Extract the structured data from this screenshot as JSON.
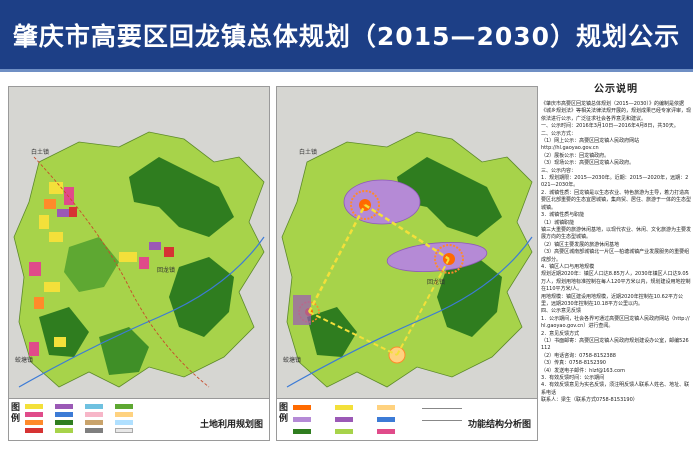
{
  "header": {
    "title": "肇庆市高要区回龙镇总体规划（2015—2030）规划公示"
  },
  "map_left": {
    "caption": "土地利用规划图",
    "legend_heading": "图例",
    "town_labels": [
      "白土镇",
      "回龙镇",
      "蛟塘镇"
    ]
  },
  "map_right": {
    "caption": "功能结构分析图",
    "legend_heading": "图例",
    "town_labels": [
      "白土镇",
      "回龙镇",
      "蛟塘镇"
    ]
  },
  "notice": {
    "title": "公示说明",
    "body": "《肇庆市高要区回龙镇总体规划（2015—2030）》的编制是依据《城乡规划法》等相关法律法规开展的，规划成果已经专家评审，现依法进行公示，广泛征求社会各界意见和建议。\n一、公示时间：2016年3月10日—2016年4月8日，共30天。\n二、公示方式：\n（1）网上公示：高要区回龙镇人民政府网站\nhttp://hl.gaoyao.gov.cn\n（2）展板公示：回龙镇政府。\n（3）现场公示：高要区回龙镇人民政府。\n三、公示内容：\n1．规划期限：2015—2030年。近期：2015—2020年，远期：2021—2030年。\n2．城镇性质：回龙镇是以生态农业、特色旅游为主导，着力打造高要区北部重要的生态宜居城镇，集商贸、居住、旅游于一体的生态型城镇。\n3．城镇性质与职能\n（1）城镇职能\n镇三大重要的旅游休闲基地，以现代农业、休闲、文化旅游为主要发展方向的生态型城镇。\n（2）镇区主要发展的旅游休闲基地\n（3）高要区城南部城镇北一片区—柏塘城镇产业发展服务的重要组成部分。\n4．镇区人口与用地规模\n规划近期2020年：镇区人口达8.85万人，2030年镇区人口达9.05万人，规划用地标准控制在每人120平方米以内，规划建设用地控制在110平方米/人。\n用地规模：镇区建设用地规模，近期2020年控制在10.62平方公里，远期2030年控制在10.18平方公里以内。\n四、公示意见反馈\n1．公示期间，社会各界可通过高要区回龙镇人民政府网站（http://hl.gaoyao.gov.cn）进行查阅。\n2．意见反馈方式\n（1）书面邮寄：高要区回龙镇人民政府规划建设办公室，邮编526112\n（2）电话咨询：0758-8152388\n（3）传真：0758-8152390\n（4）发送电子邮件：hlzf@163.com\n3．有效反馈时间：公示期间\n4．有效反馈意见为实名反馈，须注明反馈人联系人姓名、地址、联系电话\n联系人：梁生（联系方式0758-8153190）"
  },
  "colors": {
    "banner": "#1d3f86",
    "green_dark": "#2f7d1f",
    "green_light": "#a7d34a",
    "grey": "#d9d9d9"
  }
}
